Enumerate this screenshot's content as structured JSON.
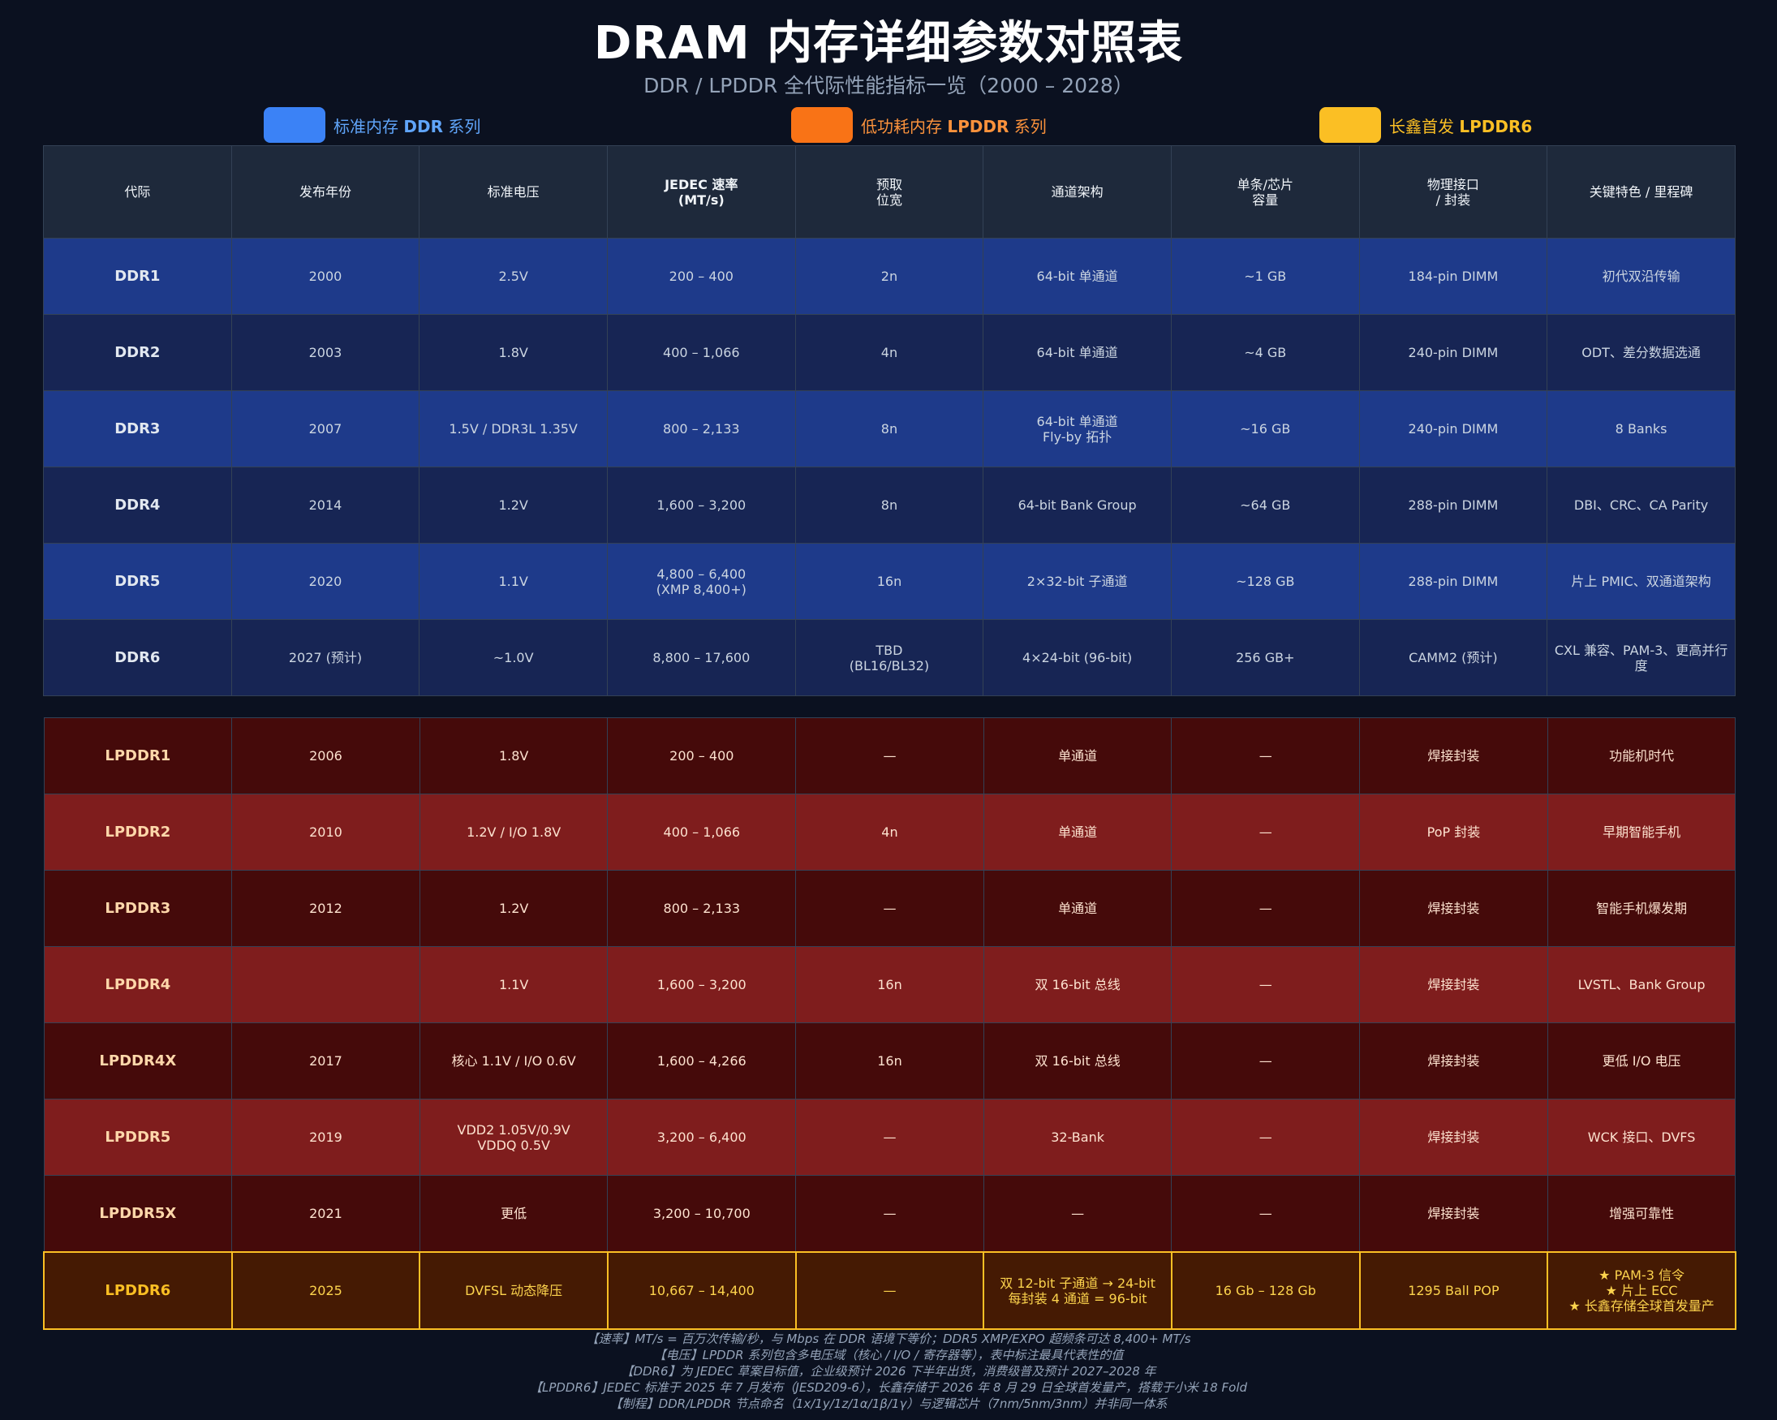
{
  "title": "DRAM 内存详细参数对照表",
  "subtitle": "DDR / LPDDR 全代际性能指标一览（2000 – 2028）",
  "legend": [
    {
      "prefix": "标准内存 ",
      "bold": "DDR",
      "suffix": " 系列",
      "color": "#3b82f6",
      "text_color": "#60a5fa"
    },
    {
      "prefix": "低功耗内存 ",
      "bold": "LPDDR",
      "suffix": " 系列",
      "color": "#f97316",
      "text_color": "#fb923c"
    },
    {
      "prefix": "长鑫首发 ",
      "bold": "LPDDR6",
      "suffix": "",
      "color": "#fbbf24",
      "text_color": "#fbbf24"
    }
  ],
  "columns": [
    "代际",
    "发布年份",
    "标准电压",
    "JEDEC 速率\n(MT/s)",
    "预取\n位宽",
    "通道架构",
    "单条/芯片\n容量",
    "物理接口\n/ 封装",
    "关键特色 / 里程碑"
  ],
  "ddr_rows": [
    [
      "DDR1",
      "2000",
      "2.5V",
      "200 – 400",
      "2n",
      "64-bit 单通道",
      "~1 GB",
      "184-pin DIMM",
      "初代双沿传输"
    ],
    [
      "DDR2",
      "2003",
      "1.8V",
      "400 – 1,066",
      "4n",
      "64-bit 单通道",
      "~4 GB",
      "240-pin DIMM",
      "ODT、差分数据选通"
    ],
    [
      "DDR3",
      "2007",
      "1.5V / DDR3L 1.35V",
      "800 – 2,133",
      "8n",
      "64-bit 单通道\nFly-by 拓扑",
      "~16 GB",
      "240-pin DIMM",
      "8 Banks"
    ],
    [
      "DDR4",
      "2014",
      "1.2V",
      "1,600 – 3,200",
      "8n",
      "64-bit Bank Group",
      "~64 GB",
      "288-pin DIMM",
      "DBI、CRC、CA Parity"
    ],
    [
      "DDR5",
      "2020",
      "1.1V",
      "4,800 – 6,400\n(XMP 8,400+)",
      "16n",
      "2×32-bit 子通道",
      "~128 GB",
      "288-pin DIMM",
      "片上 PMIC、双通道架构"
    ],
    [
      "DDR6",
      "2027 (预计)",
      "~1.0V",
      "8,800 – 17,600",
      "TBD\n(BL16/BL32)",
      "4×24-bit (96-bit)",
      "256 GB+",
      "CAMM2 (预计)",
      "CXL 兼容、PAM-3、更高并行度"
    ]
  ],
  "lpddr_rows": [
    [
      "LPDDR1",
      "2006",
      "1.8V",
      "200 – 400",
      "—",
      "单通道",
      "—",
      "焊接封装",
      "功能机时代"
    ],
    [
      "LPDDR2",
      "2010",
      "1.2V / I/O 1.8V",
      "400 – 1,066",
      "4n",
      "单通道",
      "—",
      "PoP 封装",
      "早期智能手机"
    ],
    [
      "LPDDR3",
      "2012",
      "1.2V",
      "800 – 2,133",
      "—",
      "单通道",
      "—",
      "焊接封装",
      "智能手机爆发期"
    ],
    [
      "LPDDR4",
      "",
      "1.1V",
      "1,600 – 3,200",
      "16n",
      "双 16-bit 总线",
      "—",
      "焊接封装",
      "LVSTL、Bank Group"
    ],
    [
      "LPDDR4X",
      "2017",
      "核心 1.1V / I/O 0.6V",
      "1,600 – 4,266",
      "16n",
      "双 16-bit 总线",
      "—",
      "焊接封装",
      "更低 I/O 电压"
    ],
    [
      "LPDDR5",
      "2019",
      "VDD2 1.05V/0.9V\nVDDQ 0.5V",
      "3,200 – 6,400",
      "—",
      "32-Bank",
      "—",
      "焊接封装",
      "WCK 接口、DVFS"
    ],
    [
      "LPDDR5X",
      "2021",
      "更低",
      "3,200 – 10,700",
      "—",
      "—",
      "—",
      "焊接封装",
      "增强可靠性"
    ],
    [
      "LPDDR6",
      "2025",
      "DVFSL 动态降压",
      "10,667 – 14,400",
      "—",
      "双 12-bit 子通道 → 24-bit\n每封装 4 通道 = 96-bit",
      "16 Gb – 128 Gb",
      "1295 Ball POP",
      "★ PAM-3 信令\n★ 片上 ECC\n★ 长鑫存储全球首发量产"
    ]
  ],
  "notes": [
    "【速率】MT/s = 百万次传输/秒，与 Mbps 在 DDR 语境下等价；DDR5 XMP/EXPO 超频条可达 8,400+ MT/s",
    "【电压】LPDDR 系列包含多电压域（核心 / I/O / 寄存器等），表中标注最具代表性的值",
    "【DDR6】为 JEDEC 草案目标值，企业级预计 2026 下半年出货，消费级普及预计 2027–2028 年",
    "【LPDDR6】JEDEC 标准于 2025 年 7 月发布（JESD209-6），长鑫存储于 2026 年 8 月 29 日全球首发量产，搭载于小米 18 Fold",
    "【制程】DDR/LPDDR 节点命名（1x/1y/1z/1α/1β/1γ）与逻辑芯片（7nm/5nm/3nm）并非同一体系"
  ]
}
